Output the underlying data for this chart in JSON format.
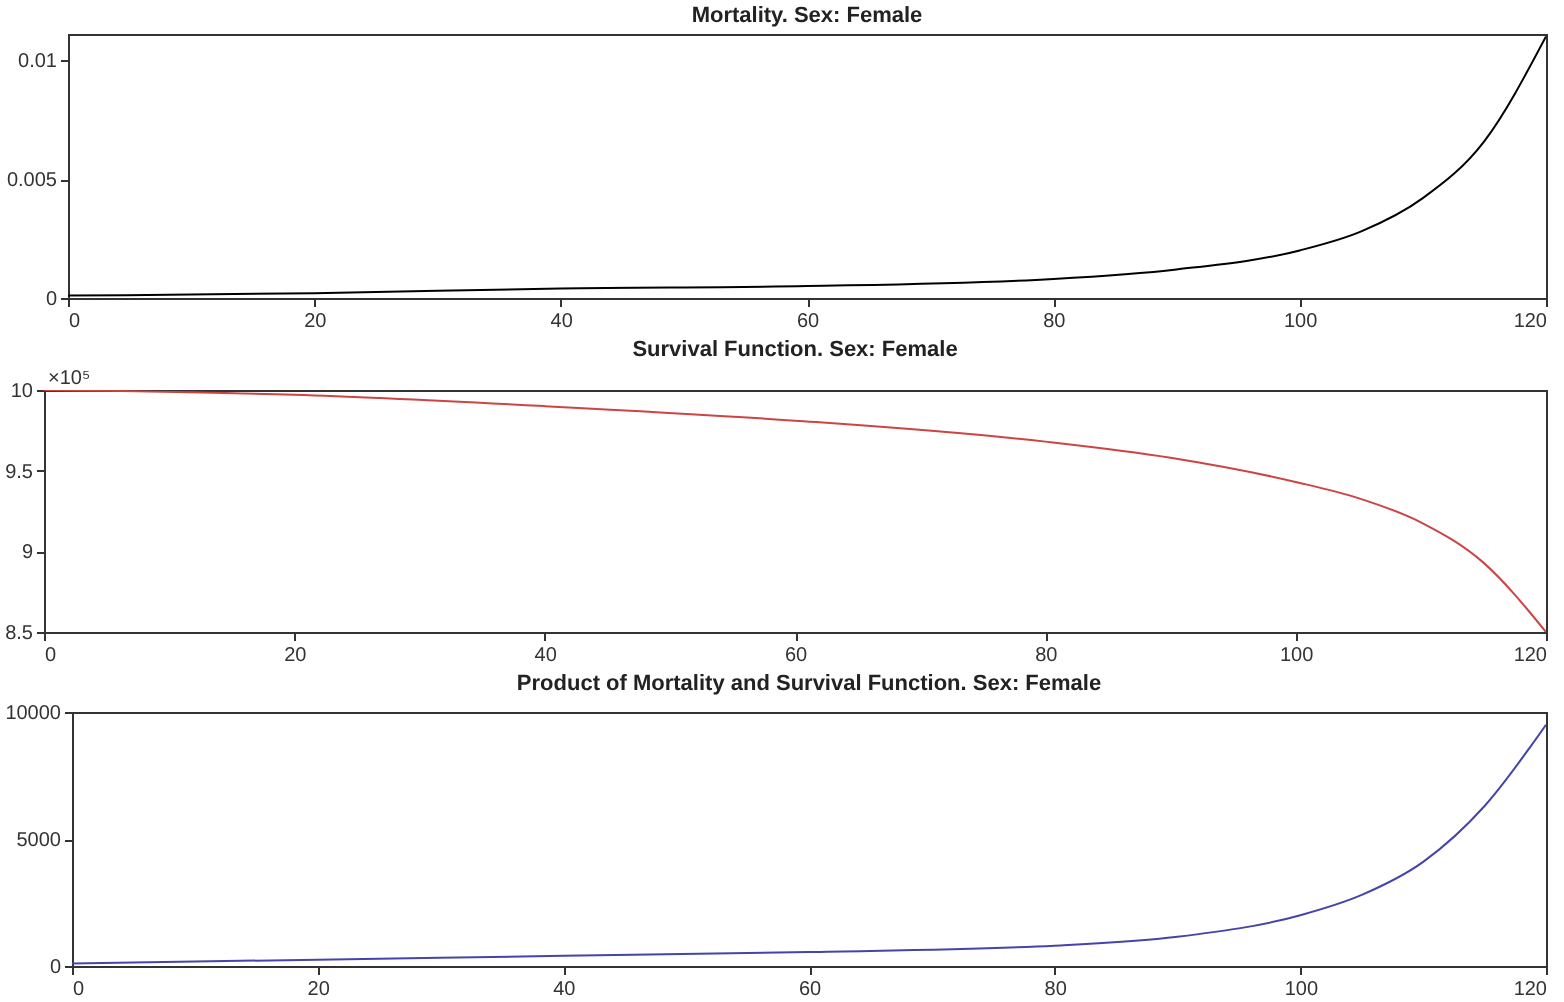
{
  "chart_data": [
    {
      "type": "line",
      "title": "Mortality. Sex: Female",
      "xlim": [
        0,
        120
      ],
      "xticks": [
        0,
        20,
        40,
        60,
        80,
        100,
        120
      ],
      "ylim": [
        0,
        0.0111
      ],
      "yticks": [
        0,
        0.005,
        0.01
      ],
      "x": [
        0,
        20,
        40,
        60,
        80,
        90,
        100,
        105,
        110,
        115,
        120
      ],
      "series": [
        {
          "color": "#000000",
          "values": [
            0.0001,
            0.0002,
            0.0004,
            0.0005,
            0.0008,
            0.0012,
            0.002,
            0.0028,
            0.0042,
            0.0066,
            0.011
          ]
        }
      ]
    },
    {
      "type": "line",
      "title": "Survival Function. Sex: Female",
      "annotations": [
        "×10⁵"
      ],
      "xlim": [
        0,
        120
      ],
      "xticks": [
        0,
        20,
        40,
        60,
        80,
        100,
        120
      ],
      "ylim": [
        8.5,
        10
      ],
      "yticks": [
        8.5,
        9,
        9.5,
        10
      ],
      "x": [
        0,
        20,
        40,
        60,
        80,
        90,
        100,
        105,
        110,
        115,
        120
      ],
      "series": [
        {
          "color": "#cc4444",
          "values": [
            10,
            9.97,
            9.9,
            9.81,
            9.68,
            9.58,
            9.43,
            9.33,
            9.18,
            8.93,
            8.5
          ]
        }
      ]
    },
    {
      "type": "line",
      "title": "Product of Mortality and Survival Function. Sex: Female",
      "xlim": [
        0,
        120
      ],
      "xticks": [
        0,
        20,
        40,
        60,
        80,
        100,
        120
      ],
      "ylim": [
        0,
        10000
      ],
      "yticks": [
        0,
        5000,
        10000
      ],
      "x": [
        0,
        20,
        40,
        60,
        80,
        90,
        100,
        105,
        110,
        115,
        120
      ],
      "series": [
        {
          "color": "#4444aa",
          "values": [
            100,
            250,
            400,
            550,
            800,
            1150,
            2000,
            2800,
            4100,
            6300,
            9500
          ]
        }
      ]
    }
  ]
}
